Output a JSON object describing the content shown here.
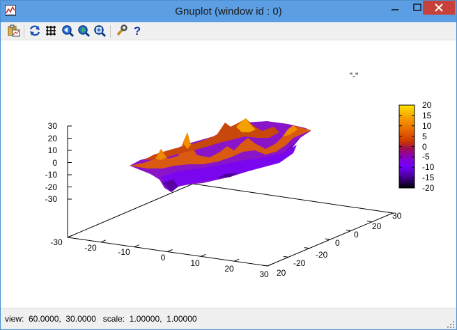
{
  "window": {
    "title": "Gnuplot (window id : 0)"
  },
  "toolbar": {
    "items": [
      {
        "name": "copy-to-clipboard-icon"
      },
      {
        "name": "replot-icon"
      },
      {
        "name": "grid-toggle-icon"
      },
      {
        "name": "zoom-previous-icon"
      },
      {
        "name": "zoom-next-icon"
      },
      {
        "name": "unzoom-icon"
      },
      {
        "name": "options-wrench-icon"
      },
      {
        "name": "help-icon"
      }
    ]
  },
  "plot": {
    "key_label": "\"-\"",
    "x_ticks": [
      "-30",
      "-20",
      "-10",
      "0",
      "10",
      "20",
      "30"
    ],
    "y_ticks": [
      "-20",
      "0",
      "20",
      "30"
    ],
    "z_ticks": [
      "30",
      "20",
      "10",
      "0",
      "-10",
      "-20",
      "-30"
    ],
    "cb_ticks": [
      "20",
      "15",
      "10",
      "5",
      "0",
      "-5",
      "-10",
      "-15",
      "-20"
    ],
    "palette": [
      "#fee600",
      "#f7a200",
      "#e86a00",
      "#cc3700",
      "#a00e4e",
      "#8a00b8",
      "#7300ff",
      "#43008a",
      "#000000"
    ]
  },
  "chart_data": {
    "type": "surface",
    "x_range": [
      -30,
      30
    ],
    "y_range": [
      -30,
      30
    ],
    "z_range": [
      -30,
      30
    ],
    "cb_range": [
      -20,
      20
    ],
    "view": [
      60,
      30
    ],
    "legend": "top-right"
  },
  "status": {
    "text": "view:  60.0000,  30.0000   scale:  1.00000,  1.00000"
  }
}
